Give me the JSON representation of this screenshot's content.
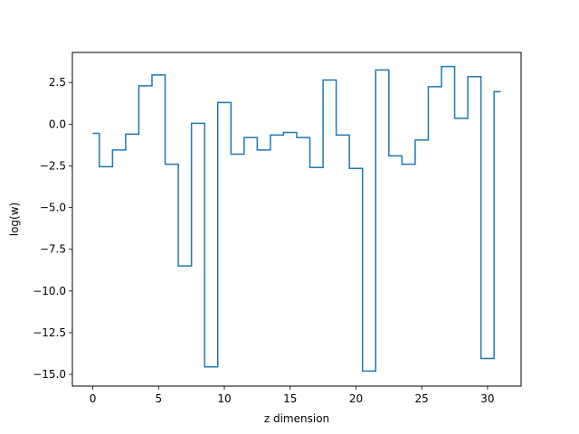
{
  "chart_data": {
    "type": "line",
    "step_style": "mid",
    "title": "",
    "xlabel": "z dimension",
    "ylabel": "log(w)",
    "xlim": [
      -1.55,
      32.55
    ],
    "ylim": [
      -15.7,
      4.3
    ],
    "x_ticks": [
      0,
      5,
      10,
      15,
      20,
      25,
      30
    ],
    "y_ticks": [
      2.5,
      0.0,
      -2.5,
      -5.0,
      -7.5,
      -10.0,
      -12.5,
      -15.0
    ],
    "x_tick_labels": [
      "0",
      "5",
      "10",
      "15",
      "20",
      "25",
      "30"
    ],
    "y_tick_labels": [
      "2.5",
      "0.0",
      "−2.5",
      "−5.0",
      "−7.5",
      "−10.0",
      "−12.5",
      "−15.0"
    ],
    "grid": false,
    "legend": "none",
    "series": [
      {
        "color": "#1f77b4",
        "x": [
          0,
          1,
          2,
          3,
          4,
          5,
          6,
          7,
          8,
          9,
          10,
          11,
          12,
          13,
          14,
          15,
          16,
          17,
          18,
          19,
          20,
          21,
          22,
          23,
          24,
          25,
          26,
          27,
          28,
          29,
          30,
          31
        ],
        "values": [
          -0.55,
          -2.55,
          -1.55,
          -0.6,
          2.3,
          2.95,
          -2.4,
          -8.5,
          0.05,
          -14.55,
          1.3,
          -1.8,
          -0.8,
          -1.55,
          -0.65,
          -0.5,
          -0.8,
          -2.6,
          2.65,
          -0.65,
          -2.65,
          -14.8,
          3.25,
          -1.9,
          -2.4,
          -0.95,
          2.25,
          3.45,
          0.35,
          2.85,
          -14.05,
          1.95
        ]
      }
    ]
  }
}
